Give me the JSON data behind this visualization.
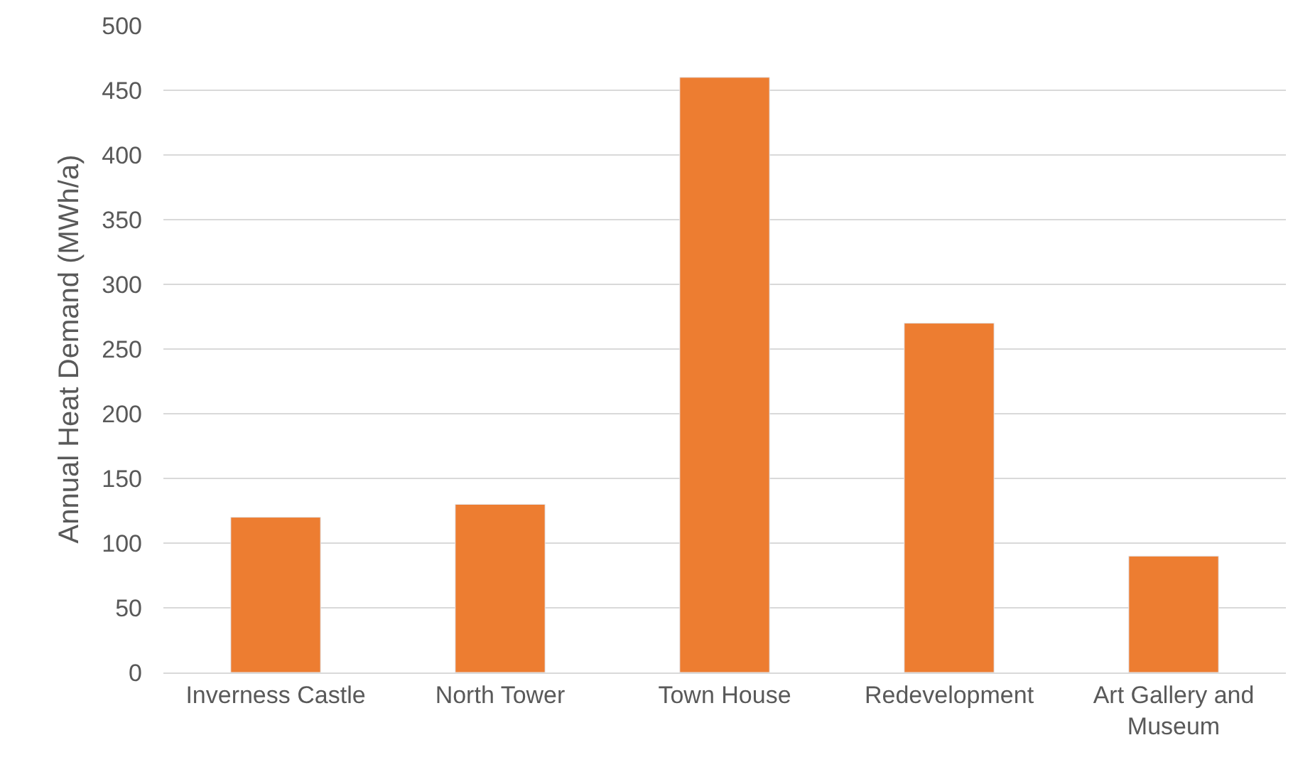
{
  "chart_data": {
    "type": "bar",
    "ylabel": "Annual Heat Demand (MWh/a)",
    "categories": [
      "Inverness Castle",
      "North Tower",
      "Town House",
      "Redevelopment",
      "Art Gallery and Museum"
    ],
    "values": [
      120,
      130,
      460,
      270,
      90
    ],
    "color": "#ed7d31",
    "ylim": [
      0,
      500
    ],
    "yticks": [
      0,
      50,
      100,
      150,
      200,
      250,
      300,
      350,
      400,
      450,
      500
    ],
    "grid": "y"
  }
}
